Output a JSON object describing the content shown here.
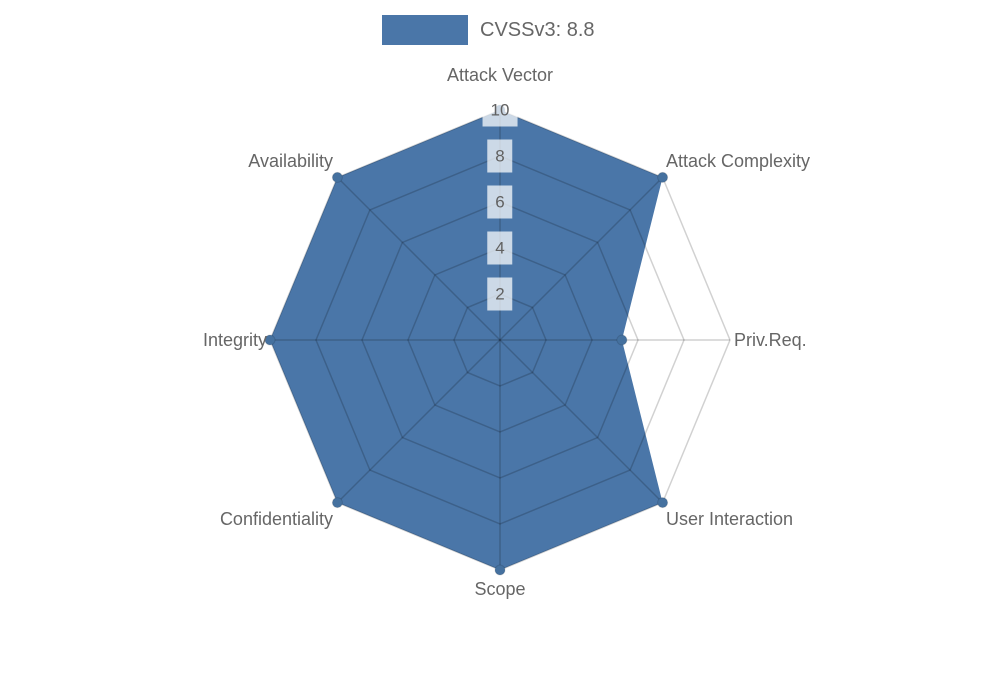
{
  "page": {
    "background": "#ffffff"
  },
  "chart_data": {
    "type": "radar",
    "title": "CVSSv3: 8.8",
    "categories": [
      "Attack Vector",
      "Attack Complexity",
      "Priv.Req.",
      "User Interaction",
      "Scope",
      "Confidentiality",
      "Integrity",
      "Availability"
    ],
    "series": [
      {
        "name": "CVSSv3: 8.8",
        "values": [
          10,
          10,
          5.3,
          10,
          10,
          10,
          10,
          10
        ]
      }
    ],
    "ticks": [
      2,
      4,
      6,
      8,
      10
    ],
    "rmin": 0,
    "rmax": 10,
    "grid": true,
    "legend_position": "top",
    "colors": {
      "series_fill": "#4a76a8",
      "series_point": "#45719f",
      "grid_line": "rgba(0,0,0,0.18)",
      "axis_label": "#666666",
      "tick_label": "#616161",
      "tick_backdrop": "rgba(255,255,255,0.72)"
    }
  }
}
